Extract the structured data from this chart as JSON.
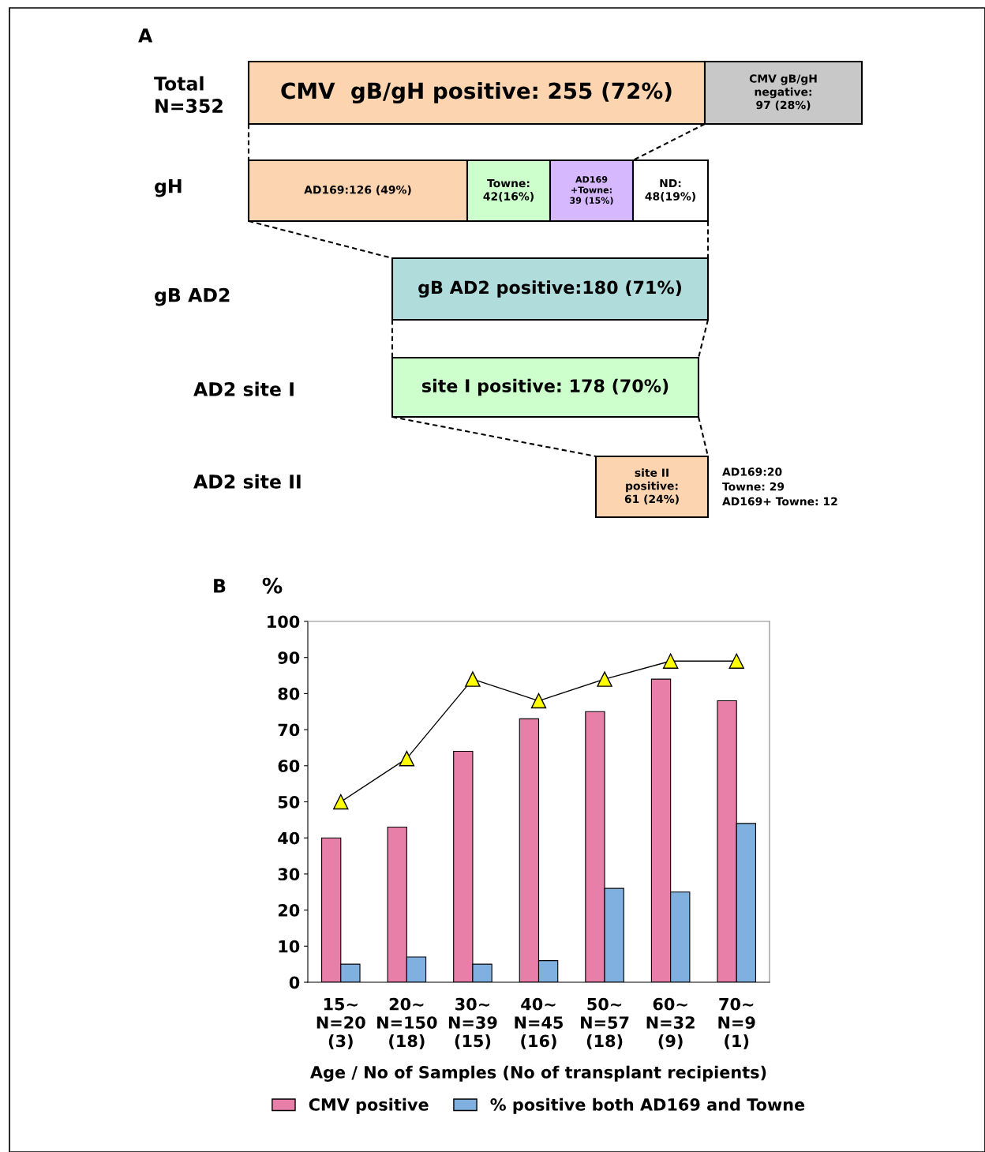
{
  "chart_data": [
    {
      "type": "other",
      "title": "A",
      "categories": [
        "Total\nN=352",
        "gH",
        "gB AD2",
        "AD2 site I",
        "AD2 site II"
      ],
      "annotations": [
        "CMV  gB/gH positive: 255 (72%)",
        "CMV gB/gH\nnegative:\n97 (28%)",
        "AD169:126 (49%)",
        "Towne:\n42(16%)",
        "AD169\n+Towne:\n39 (15%)",
        "ND:\n48(19%)",
        "gB AD2 positive:180 (71%)",
        "site I positive: 178 (70%)",
        "site II\npositive:\n61 (24%)",
        "AD169:20\nTowne: 29\nAD169+ Towne: 12"
      ],
      "colors": [
        "#fcd5b0",
        "#c8c8c8",
        "#fcd5b0",
        "#ccffcc",
        "#d6b8ff",
        "#ffffff",
        "#b0dcdc",
        "#ccffcc",
        "#fcd5b0",
        null
      ]
    },
    {
      "type": "bar",
      "title": "B",
      "ylabel": "%",
      "xlabel": "Age / No of Samples (No of transplant recipients)",
      "categories": [
        "15∼\nN=20\n(3)",
        "20∼\nN=150\n(18)",
        "30∼\nN=39\n(15)",
        "40∼\nN=45\n(16)",
        "50∼\nN=57\n(18)",
        "60∼\nN=32\n(9)",
        "70∼\nN=9\n(1)"
      ],
      "series": [
        {
          "name": "CMV positive",
          "color": "#e87fa8",
          "values": [
            40,
            43,
            64,
            73,
            75,
            84,
            78
          ]
        },
        {
          "name": "% positive both AD169 and Towne",
          "color": "#7fb0e0",
          "values": [
            5,
            7,
            5,
            6,
            26,
            25,
            44
          ]
        },
        {
          "type": "line",
          "color": "#ffff00",
          "marker": "triangle",
          "values": [
            50,
            62,
            84,
            78,
            84,
            89,
            89
          ]
        }
      ],
      "ylim": [
        0,
        100
      ],
      "yticks": [
        0,
        10,
        20,
        30,
        40,
        50,
        60,
        70,
        80,
        90,
        100
      ],
      "grid": false,
      "legend": "bottom"
    }
  ]
}
